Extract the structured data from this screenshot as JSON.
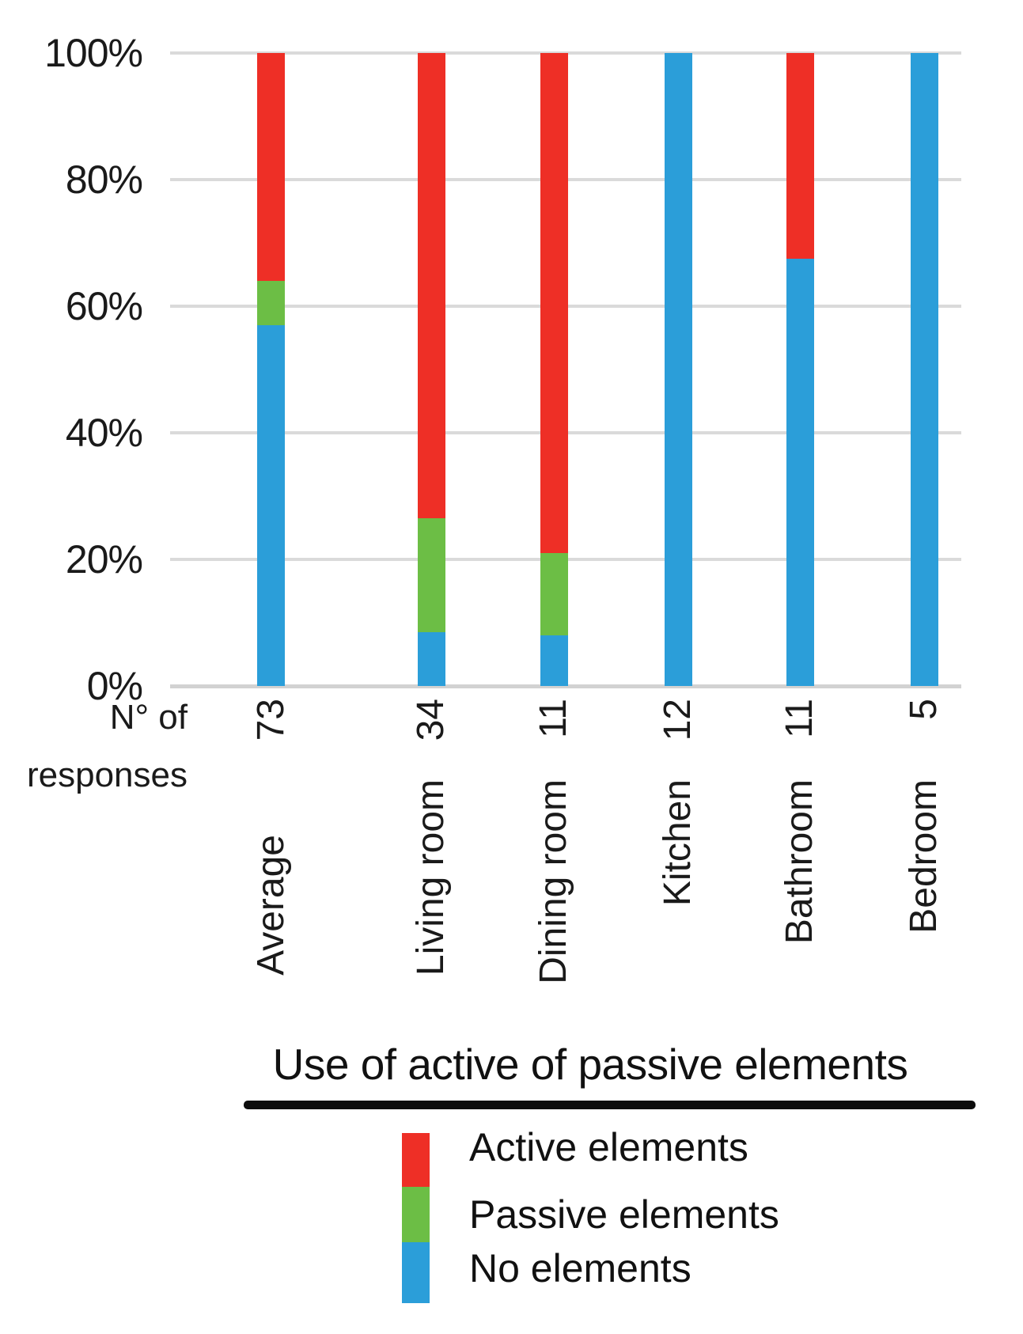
{
  "chart_data": {
    "type": "bar",
    "subtype": "stacked-100-percent",
    "title": "Use of active of passive elements",
    "categories": [
      "Average",
      "Living room",
      "Dining room",
      "Kitchen",
      "Bathroom",
      "Bedroom"
    ],
    "n_of_responses": [
      "73",
      "34",
      "11",
      "12",
      "11",
      "5"
    ],
    "x_note": {
      "line1": "N° of",
      "line2": "responses"
    },
    "series": [
      {
        "name": "Active elements",
        "color": "#ee2f26",
        "values": [
          36,
          73.5,
          79,
          0,
          32.5,
          0
        ]
      },
      {
        "name": "Passive elements",
        "color": "#6cbe45",
        "values": [
          7,
          18,
          13,
          0,
          0,
          0
        ]
      },
      {
        "name": "No elements",
        "color": "#2b9ed9",
        "values": [
          57,
          8.5,
          8,
          100,
          67.5,
          100
        ]
      }
    ],
    "y_ticks": [
      "100%",
      "80%",
      "60%",
      "40%",
      "20%",
      "0%"
    ],
    "ylim": [
      0,
      100
    ],
    "grid": true,
    "legend_position": "bottom",
    "colors": {
      "gridline": "#dadada",
      "axis_text": "#1a1a1a"
    }
  }
}
